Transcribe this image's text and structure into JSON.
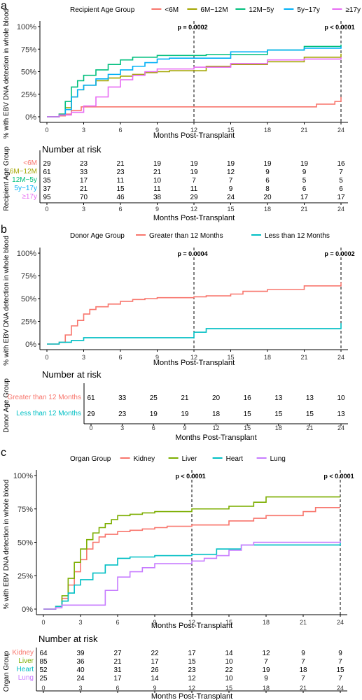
{
  "chart_data": [
    {
      "panel": "a",
      "type": "line",
      "legend_title": "Recipient Age Group",
      "legend_position": "top",
      "ylabel": "% with EBV DNA detection in whole blood",
      "xlabel": "Months Post-Transplant",
      "x_ticks": [
        "0",
        "3",
        "6",
        "9",
        "12",
        "15",
        "18",
        "21",
        "24"
      ],
      "y_ticks": [
        "0%",
        "25%",
        "50%",
        "75%",
        "100%"
      ],
      "xlim": [
        0,
        24
      ],
      "ylim": [
        0,
        100
      ],
      "annotations": [
        {
          "x": 12,
          "label": "p = 0.0002"
        },
        {
          "x": 24,
          "label": "p < 0.0001"
        }
      ],
      "series": [
        {
          "name": "<6M",
          "color": "#F8766D",
          "points": [
            [
              0,
              0
            ],
            [
              1,
              1
            ],
            [
              1.5,
              3
            ],
            [
              2,
              7
            ],
            [
              2.8,
              11
            ],
            [
              6,
              11
            ],
            [
              12,
              11
            ],
            [
              21,
              11
            ],
            [
              22,
              14
            ],
            [
              23.5,
              17
            ],
            [
              24,
              22
            ]
          ]
        },
        {
          "name": "6M−12M",
          "color": "#A3A500",
          "points": [
            [
              0,
              0
            ],
            [
              1,
              3
            ],
            [
              1.5,
              10
            ],
            [
              2,
              22
            ],
            [
              2.5,
              30
            ],
            [
              3,
              35
            ],
            [
              4,
              40
            ],
            [
              5,
              43
            ],
            [
              6,
              45
            ],
            [
              7,
              47
            ],
            [
              8,
              49
            ],
            [
              9,
              50
            ],
            [
              10,
              51
            ],
            [
              12,
              51
            ],
            [
              13,
              56
            ],
            [
              15,
              58
            ],
            [
              18,
              61
            ],
            [
              21,
              66
            ],
            [
              24,
              70
            ]
          ]
        },
        {
          "name": "12M−5y",
          "color": "#00BF7D",
          "points": [
            [
              0,
              0
            ],
            [
              1,
              3
            ],
            [
              1.5,
              17
            ],
            [
              2,
              33
            ],
            [
              2.5,
              40
            ],
            [
              3,
              46
            ],
            [
              4,
              52
            ],
            [
              5,
              58
            ],
            [
              6,
              63
            ],
            [
              7,
              66
            ],
            [
              9,
              68
            ],
            [
              12,
              68
            ],
            [
              13,
              69
            ],
            [
              15,
              69
            ],
            [
              18,
              74
            ],
            [
              21,
              78
            ],
            [
              24,
              80
            ]
          ]
        },
        {
          "name": "5y−17y",
          "color": "#00B0F6",
          "points": [
            [
              0,
              0
            ],
            [
              1,
              2
            ],
            [
              1.5,
              8
            ],
            [
              2,
              22
            ],
            [
              2.5,
              30
            ],
            [
              3,
              35
            ],
            [
              4,
              42
            ],
            [
              5,
              47
            ],
            [
              6,
              52
            ],
            [
              7,
              56
            ],
            [
              8,
              60
            ],
            [
              9,
              64
            ],
            [
              10,
              65
            ],
            [
              12,
              65
            ],
            [
              15,
              72
            ],
            [
              18,
              74
            ],
            [
              21,
              76
            ],
            [
              24,
              78
            ]
          ]
        },
        {
          "name": "≥17y",
          "color": "#E76BF3",
          "points": [
            [
              0,
              0
            ],
            [
              1,
              2
            ],
            [
              2,
              5
            ],
            [
              3,
              12
            ],
            [
              4,
              22
            ],
            [
              5,
              33
            ],
            [
              6,
              41
            ],
            [
              7,
              46
            ],
            [
              8,
              50
            ],
            [
              9,
              53
            ],
            [
              12,
              55
            ],
            [
              15,
              59
            ],
            [
              18,
              63
            ],
            [
              21,
              64
            ],
            [
              24,
              66
            ]
          ]
        }
      ],
      "risk_table": {
        "title": "Number at risk",
        "ylabel": "Recipient Age Group",
        "xlabel": "Months Post-Transplant",
        "rows": [
          {
            "label": "<6M",
            "color": "#F8766D",
            "values": [
              "29",
              "23",
              "21",
              "19",
              "19",
              "19",
              "19",
              "19",
              "16"
            ]
          },
          {
            "label": "6M−12M",
            "color": "#A3A500",
            "values": [
              "61",
              "33",
              "23",
              "21",
              "19",
              "12",
              "9",
              "9",
              "7"
            ]
          },
          {
            "label": "12M−5y",
            "color": "#00BF7D",
            "values": [
              "35",
              "17",
              "11",
              "10",
              "7",
              "7",
              "6",
              "5",
              "5"
            ]
          },
          {
            "label": "5y−17y",
            "color": "#00B0F6",
            "values": [
              "37",
              "21",
              "15",
              "11",
              "11",
              "9",
              "8",
              "6",
              "6"
            ]
          },
          {
            "label": "≥17y",
            "color": "#E76BF3",
            "values": [
              "95",
              "70",
              "46",
              "38",
              "29",
              "24",
              "20",
              "17",
              "17"
            ]
          }
        ]
      }
    },
    {
      "panel": "b",
      "type": "line",
      "legend_title": "Donor Age Group",
      "legend_position": "top",
      "ylabel": "% with EBV DNA detection in whole blood",
      "xlabel": "Months Post-Transplant",
      "x_ticks": [
        "0",
        "3",
        "6",
        "9",
        "12",
        "15",
        "18",
        "21",
        "24"
      ],
      "y_ticks": [
        "0%",
        "25%",
        "50%",
        "75%",
        "100%"
      ],
      "xlim": [
        0,
        24
      ],
      "ylim": [
        0,
        100
      ],
      "annotations": [
        {
          "x": 12,
          "label": "p = 0.0004"
        },
        {
          "x": 24,
          "label": "p = 0.0002"
        }
      ],
      "series": [
        {
          "name": "Greater than 12 Months",
          "color": "#F8766D",
          "points": [
            [
              0,
              0
            ],
            [
              1,
              2
            ],
            [
              1.5,
              10
            ],
            [
              2,
              20
            ],
            [
              2.5,
              26
            ],
            [
              3,
              33
            ],
            [
              3.5,
              38
            ],
            [
              4,
              41
            ],
            [
              5,
              44
            ],
            [
              6,
              47
            ],
            [
              7,
              49
            ],
            [
              8,
              50
            ],
            [
              9,
              51
            ],
            [
              12,
              52
            ],
            [
              13,
              53
            ],
            [
              15,
              55
            ],
            [
              16,
              58
            ],
            [
              18,
              60
            ],
            [
              21,
              64
            ],
            [
              24,
              68
            ]
          ]
        },
        {
          "name": "Less than 12 Months",
          "color": "#00BFC4",
          "points": [
            [
              0,
              0
            ],
            [
              1,
              2
            ],
            [
              2,
              4
            ],
            [
              3,
              7
            ],
            [
              6,
              7
            ],
            [
              9,
              7
            ],
            [
              11.9,
              7
            ],
            [
              12,
              13
            ],
            [
              13,
              17
            ],
            [
              15,
              17
            ],
            [
              18,
              17
            ],
            [
              23.5,
              17
            ],
            [
              24,
              23
            ]
          ]
        }
      ],
      "risk_table": {
        "title": "Number at risk",
        "ylabel": "Donor Age Group",
        "xlabel": "Months Post-Transplant",
        "rows": [
          {
            "label": "Greater than 12 Months",
            "color": "#F8766D",
            "values": [
              "61",
              "33",
              "25",
              "21",
              "20",
              "16",
              "13",
              "13",
              "10"
            ]
          },
          {
            "label": "Less than 12 Months",
            "color": "#00BFC4",
            "values": [
              "29",
              "23",
              "19",
              "19",
              "18",
              "15",
              "15",
              "15",
              "13"
            ]
          }
        ]
      }
    },
    {
      "panel": "c",
      "type": "line",
      "legend_title": "Organ Group",
      "legend_position": "top",
      "ylabel": "% with EBV DNA detection in whole blood",
      "xlabel": "Months Post-Transplant",
      "x_ticks": [
        "0",
        "3",
        "6",
        "9",
        "12",
        "15",
        "18",
        "21",
        "24"
      ],
      "y_ticks": [
        "0%",
        "25%",
        "50%",
        "75%",
        "100%"
      ],
      "xlim": [
        0,
        24
      ],
      "ylim": [
        0,
        100
      ],
      "annotations": [
        {
          "x": 12,
          "label": "p < 0.0001"
        },
        {
          "x": 24,
          "label": "p < 0.0001"
        }
      ],
      "series": [
        {
          "name": "Kidney",
          "color": "#F8766D",
          "points": [
            [
              0,
              0
            ],
            [
              1,
              2
            ],
            [
              1.5,
              8
            ],
            [
              2,
              18
            ],
            [
              2.5,
              28
            ],
            [
              3,
              37
            ],
            [
              3.5,
              45
            ],
            [
              4,
              50
            ],
            [
              4.5,
              54
            ],
            [
              5,
              56
            ],
            [
              6,
              58
            ],
            [
              7,
              59
            ],
            [
              8,
              60
            ],
            [
              9,
              61
            ],
            [
              10,
              62
            ],
            [
              12,
              63
            ],
            [
              15,
              66
            ],
            [
              17,
              68
            ],
            [
              18,
              70
            ],
            [
              21,
              73
            ],
            [
              22,
              76
            ],
            [
              24,
              76
            ]
          ]
        },
        {
          "name": "Liver",
          "color": "#7CAE00",
          "points": [
            [
              0,
              0
            ],
            [
              1,
              2
            ],
            [
              1.5,
              10
            ],
            [
              2,
              23
            ],
            [
              2.5,
              35
            ],
            [
              3,
              45
            ],
            [
              3.5,
              52
            ],
            [
              4,
              57
            ],
            [
              4.5,
              61
            ],
            [
              5,
              64
            ],
            [
              5.5,
              67
            ],
            [
              6,
              70
            ],
            [
              7,
              71
            ],
            [
              8,
              72
            ],
            [
              9,
              73
            ],
            [
              12,
              75
            ],
            [
              15,
              77
            ],
            [
              17,
              80
            ],
            [
              18,
              84
            ],
            [
              24,
              84
            ]
          ]
        },
        {
          "name": "Heart",
          "color": "#00BFC4",
          "points": [
            [
              0,
              0
            ],
            [
              1,
              2
            ],
            [
              1.5,
              6
            ],
            [
              2,
              12
            ],
            [
              2.5,
              18
            ],
            [
              3,
              22
            ],
            [
              4,
              27
            ],
            [
              5,
              33
            ],
            [
              6,
              38
            ],
            [
              7,
              39
            ],
            [
              9,
              40
            ],
            [
              12,
              41
            ],
            [
              14,
              45
            ],
            [
              16,
              48
            ],
            [
              24,
              50
            ]
          ]
        },
        {
          "name": "Lung",
          "color": "#C77CFF",
          "points": [
            [
              0,
              0
            ],
            [
              1,
              1
            ],
            [
              1.5,
              3
            ],
            [
              4.5,
              3
            ],
            [
              5,
              14
            ],
            [
              6,
              24
            ],
            [
              7,
              28
            ],
            [
              8,
              31
            ],
            [
              9,
              34
            ],
            [
              12,
              36
            ],
            [
              13,
              38
            ],
            [
              14,
              40
            ],
            [
              15,
              44
            ],
            [
              16,
              48
            ],
            [
              17,
              50
            ],
            [
              24,
              51
            ]
          ]
        }
      ],
      "risk_table": {
        "title": "Number at risk",
        "ylabel": "Organ Group",
        "xlabel": "Months Post-Transplant",
        "rows": [
          {
            "label": "Kidney",
            "color": "#F8766D",
            "values": [
              "64",
              "39",
              "27",
              "22",
              "17",
              "14",
              "12",
              "9",
              "9"
            ]
          },
          {
            "label": "Liver",
            "color": "#7CAE00",
            "values": [
              "85",
              "36",
              "21",
              "17",
              "15",
              "10",
              "7",
              "7",
              "7"
            ]
          },
          {
            "label": "Heart",
            "color": "#00BFC4",
            "values": [
              "52",
              "40",
              "31",
              "26",
              "23",
              "22",
              "19",
              "18",
              "15"
            ]
          },
          {
            "label": "Lung",
            "color": "#C77CFF",
            "values": [
              "25",
              "24",
              "17",
              "14",
              "12",
              "10",
              "9",
              "7",
              "7"
            ]
          }
        ]
      }
    }
  ]
}
